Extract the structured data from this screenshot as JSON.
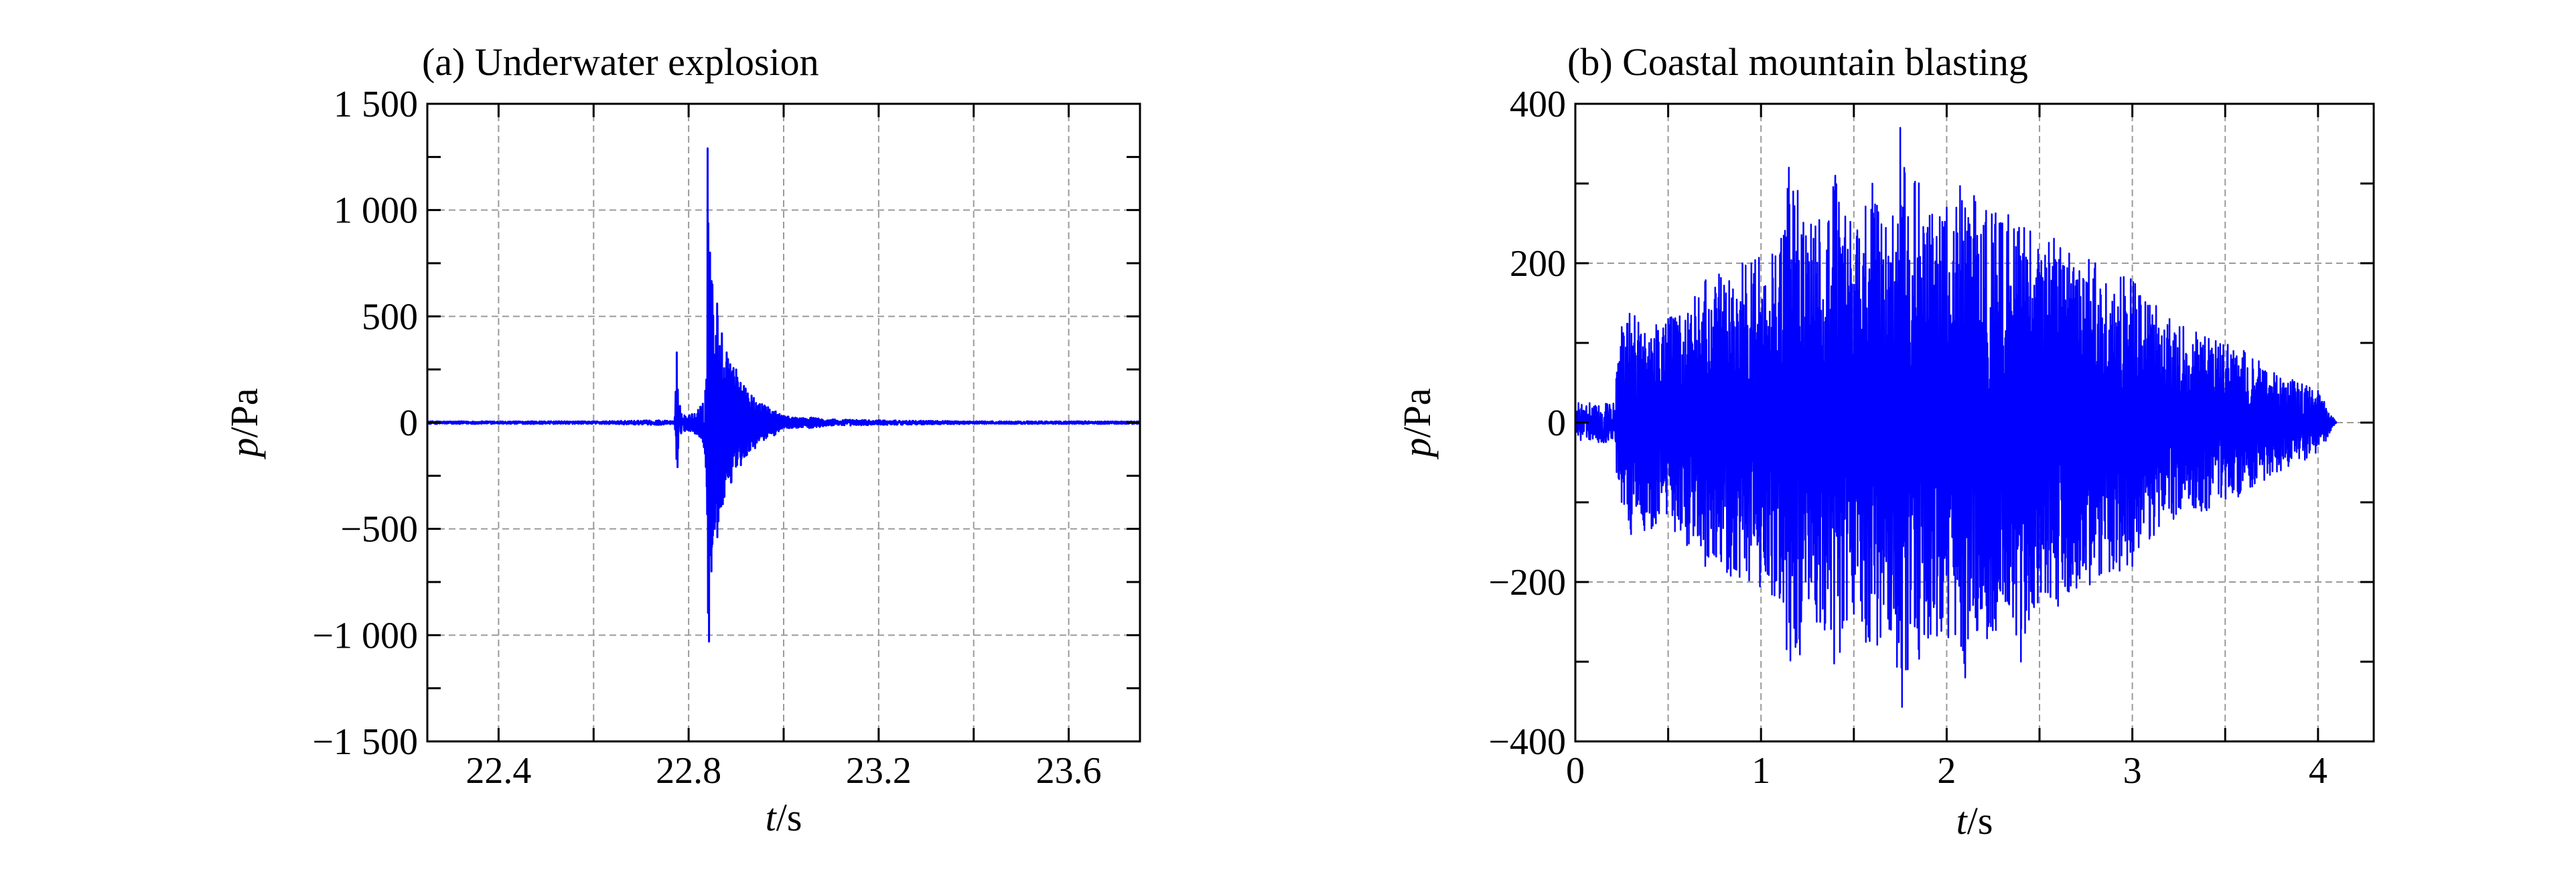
{
  "chart_data": [
    {
      "type": "line",
      "title": "(a) Underwater explosion",
      "xlabel_var": "t",
      "xlabel_unit": "/s",
      "ylabel_var": "p",
      "ylabel_unit": "/Pa",
      "xlim": [
        22.25,
        23.75
      ],
      "ylim": [
        -1500,
        1500
      ],
      "xticks": [
        22.4,
        22.8,
        23.2,
        23.6
      ],
      "xtick_labels": [
        "22.4",
        "22.8",
        "23.2",
        "23.6"
      ],
      "yticks": [
        1500,
        1000,
        500,
        0,
        -500,
        -1000,
        -1500
      ],
      "ytick_labels": [
        "1 500",
        "1 000",
        "500",
        "0",
        "−500",
        "−1 000",
        "−1 500"
      ],
      "grid": true,
      "color": "#0000ff",
      "series": [
        {
          "x": [
            22.25,
            22.4,
            22.6,
            22.74,
            22.77,
            22.775,
            22.778,
            22.785,
            22.8,
            22.82,
            22.83,
            22.835,
            22.838,
            22.84,
            22.843,
            22.845,
            22.848,
            22.85,
            22.855,
            22.86,
            22.865,
            22.87,
            22.875,
            22.88,
            22.89,
            22.9,
            22.91,
            22.92,
            22.94,
            22.96,
            22.98,
            23.0,
            23.05,
            23.1,
            23.2,
            23.4,
            23.6,
            23.75
          ],
          "y": [
            0,
            0,
            0,
            5,
            0,
            330,
            -120,
            40,
            -30,
            60,
            -90,
            150,
            -300,
            1290,
            -1030,
            800,
            -700,
            650,
            -500,
            560,
            -400,
            420,
            -350,
            330,
            -280,
            250,
            -200,
            160,
            -120,
            80,
            -60,
            30,
            -20,
            10,
            5,
            0,
            0,
            0
          ]
        }
      ]
    },
    {
      "type": "line",
      "title": "(b) Coastal mountain blasting",
      "xlabel_var": "t",
      "xlabel_unit": "/s",
      "ylabel_var": "p",
      "ylabel_unit": "/Pa",
      "xlim": [
        0,
        4.3
      ],
      "ylim": [
        -400,
        400
      ],
      "xticks": [
        0,
        1,
        2,
        3,
        4
      ],
      "xtick_labels": [
        "0",
        "1",
        "2",
        "3",
        "4"
      ],
      "yticks": [
        400,
        200,
        0,
        -200,
        -400
      ],
      "ytick_labels": [
        "400",
        "200",
        "0",
        "−200",
        "−400"
      ],
      "grid": true,
      "color": "#0000ff",
      "series": [
        {
          "x": [
            0,
            0.1,
            0.2,
            0.25,
            0.3,
            0.5,
            0.7,
            0.9,
            1.1,
            1.15,
            1.3,
            1.4,
            1.5,
            1.6,
            1.7,
            1.75,
            1.9,
            2.0,
            2.1,
            2.3,
            2.4,
            2.45,
            2.6,
            2.8,
            3.0,
            3.2,
            3.4,
            3.6,
            3.8,
            4.0,
            4.1
          ],
          "y": [
            0,
            20,
            -20,
            120,
            -140,
            130,
            -180,
            200,
            -220,
            320,
            -250,
            310,
            -240,
            300,
            -260,
            370,
            -270,
            270,
            -320,
            250,
            -300,
            240,
            -230,
            200,
            -180,
            130,
            -110,
            90,
            -60,
            40,
            0
          ]
        }
      ]
    }
  ]
}
